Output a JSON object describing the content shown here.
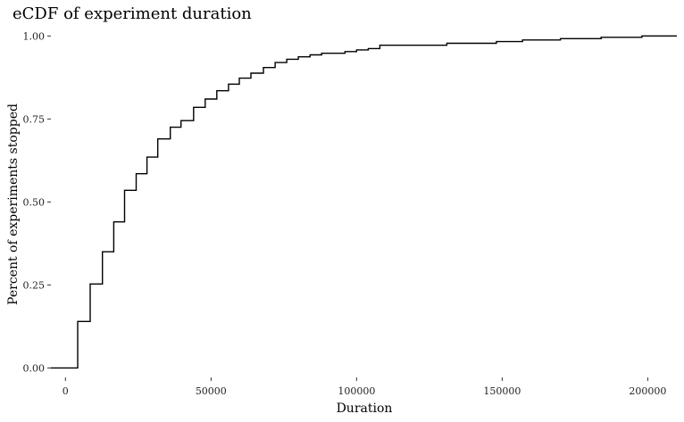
{
  "chart_data": {
    "type": "line",
    "step": true,
    "title": "eCDF of experiment duration",
    "xlabel": "Duration",
    "ylabel": "Percent of experiments stopped",
    "xlim": [
      -5000,
      210000
    ],
    "ylim": [
      -0.015,
      1.025
    ],
    "x_ticks": [
      0,
      50000,
      100000,
      150000,
      200000
    ],
    "x_tick_labels": [
      "0",
      "50000",
      "100000",
      "150000",
      "200000"
    ],
    "y_ticks": [
      0,
      0.25,
      0.5,
      0.75,
      1.0
    ],
    "y_tick_labels": [
      "0.00",
      "0.25",
      "0.50",
      "0.75",
      "1.00"
    ],
    "grid": false,
    "series": [
      {
        "color": "#000000",
        "points": [
          [
            -7000,
            0.0
          ],
          [
            4200,
            0.0
          ],
          [
            4200,
            0.14
          ],
          [
            8500,
            0.14
          ],
          [
            8500,
            0.253
          ],
          [
            12700,
            0.253
          ],
          [
            12700,
            0.35
          ],
          [
            16600,
            0.35
          ],
          [
            16600,
            0.44
          ],
          [
            20300,
            0.44
          ],
          [
            20300,
            0.535
          ],
          [
            24300,
            0.535
          ],
          [
            24300,
            0.585
          ],
          [
            28000,
            0.585
          ],
          [
            28000,
            0.635
          ],
          [
            31700,
            0.635
          ],
          [
            31700,
            0.69
          ],
          [
            36000,
            0.69
          ],
          [
            36000,
            0.725
          ],
          [
            39700,
            0.725
          ],
          [
            39700,
            0.745
          ],
          [
            44000,
            0.745
          ],
          [
            44000,
            0.785
          ],
          [
            48000,
            0.785
          ],
          [
            48000,
            0.81
          ],
          [
            52000,
            0.81
          ],
          [
            52000,
            0.835
          ],
          [
            56000,
            0.835
          ],
          [
            56000,
            0.855
          ],
          [
            59700,
            0.855
          ],
          [
            59700,
            0.873
          ],
          [
            63700,
            0.873
          ],
          [
            63700,
            0.888
          ],
          [
            68000,
            0.888
          ],
          [
            68000,
            0.905
          ],
          [
            72000,
            0.905
          ],
          [
            72000,
            0.92
          ],
          [
            76000,
            0.92
          ],
          [
            76000,
            0.93
          ],
          [
            80000,
            0.93
          ],
          [
            80000,
            0.937
          ],
          [
            84000,
            0.937
          ],
          [
            84000,
            0.943
          ],
          [
            88000,
            0.943
          ],
          [
            88000,
            0.948
          ],
          [
            96000,
            0.948
          ],
          [
            96000,
            0.953
          ],
          [
            100000,
            0.953
          ],
          [
            100000,
            0.958
          ],
          [
            104000,
            0.958
          ],
          [
            104000,
            0.962
          ],
          [
            108000,
            0.962
          ],
          [
            108000,
            0.972
          ],
          [
            131000,
            0.972
          ],
          [
            131000,
            0.978
          ],
          [
            148000,
            0.978
          ],
          [
            148000,
            0.983
          ],
          [
            157000,
            0.983
          ],
          [
            157000,
            0.988
          ],
          [
            170000,
            0.988
          ],
          [
            170000,
            0.992
          ],
          [
            184000,
            0.992
          ],
          [
            184000,
            0.996
          ],
          [
            198000,
            0.996
          ],
          [
            198000,
            1.0
          ],
          [
            210000,
            1.0
          ]
        ]
      }
    ]
  }
}
